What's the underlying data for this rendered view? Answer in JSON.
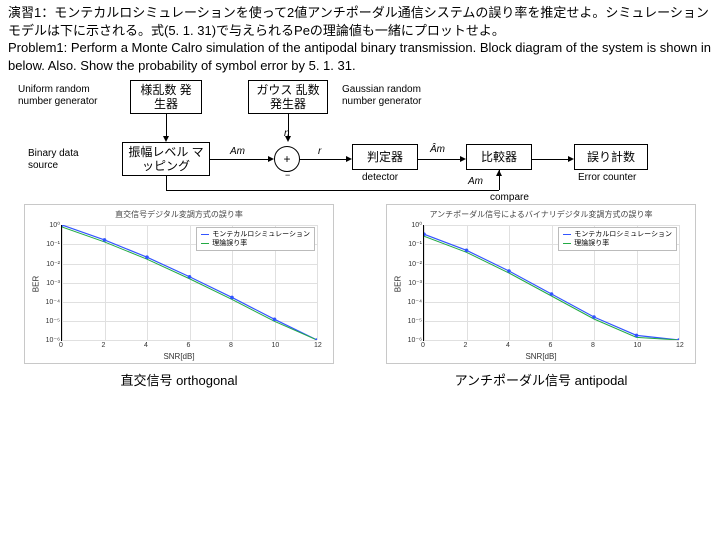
{
  "text": {
    "jp": "演習1：モンテカルロシミュレーションを使って2値アンチポーダル通信システムの誤り率を推定せよ。シミュレーションモデルは下に示される。式(5. 1. 31)で与えられるPeの理論値も一緒にプロットせよ。",
    "en": "Problem1: Perform a Monte Calro simulation of the antipodal binary transmission. Block diagram of the system is shown in below. Also. Show the probability of symbol error by 5. 1. 31."
  },
  "diagram": {
    "uniform_label": "Uniform random\nnumber generator",
    "gaussian_label": "Gaussian random\nnumber generator",
    "binary_label": "Binary data\nsource",
    "box_uniform": "様乱数\n発生器",
    "box_gauss": "ガウス\n乱数発生器",
    "box_amp": "振幅レベル\nマッピング",
    "box_detector": "判定器",
    "box_comparator": "比較器",
    "box_error": "誤り計数",
    "detector_en": "detector",
    "error_en": "Error counter",
    "compare_en": "compare",
    "sig_am": "Am",
    "sig_n": "n",
    "sig_r": "r",
    "sig_ahat": "Âm",
    "sig_am2": "Am",
    "plus": "+",
    "minus": "−"
  },
  "charts": {
    "orthogonal": {
      "title": "直交信号デジタル変調方式の誤り率",
      "xlabel": "SNR[dB]",
      "ylabel": "BER",
      "xlim": [
        0,
        12
      ],
      "xtick_step": 2,
      "ylim_exp": [
        -6,
        0
      ],
      "ytick_step": 1,
      "legend": [
        "モンテカルロシミュレーション",
        "理論誤り率"
      ],
      "colors": {
        "sim": "#3355ff",
        "theory": "#22aa44",
        "grid": "#e0e0e0"
      },
      "curve_pts": [
        [
          0,
          0
        ],
        [
          2,
          0.13
        ],
        [
          4,
          0.28
        ],
        [
          6,
          0.45
        ],
        [
          8,
          0.63
        ],
        [
          10,
          0.82
        ],
        [
          12,
          1
        ]
      ]
    },
    "antipodal": {
      "title": "アンチポーダル信号によるバイナリデジタル変調方式の誤り率",
      "xlabel": "SNR[dB]",
      "ylabel": "BER",
      "xlim": [
        0,
        12
      ],
      "xtick_step": 2,
      "ylim_exp": [
        -6,
        0
      ],
      "ytick_step": 1,
      "legend": [
        "モンテカルロシミュレーション",
        "理論誤り率"
      ],
      "colors": {
        "sim": "#3355ff",
        "theory": "#22aa44",
        "grid": "#e0e0e0"
      },
      "curve_pts": [
        [
          0,
          0.08
        ],
        [
          2,
          0.22
        ],
        [
          4,
          0.4
        ],
        [
          6,
          0.6
        ],
        [
          8,
          0.8
        ],
        [
          10,
          0.96
        ],
        [
          12,
          1
        ]
      ]
    },
    "caption_orth": "直交信号 orthogonal",
    "caption_anti": "アンチポーダル信号 antipodal"
  }
}
